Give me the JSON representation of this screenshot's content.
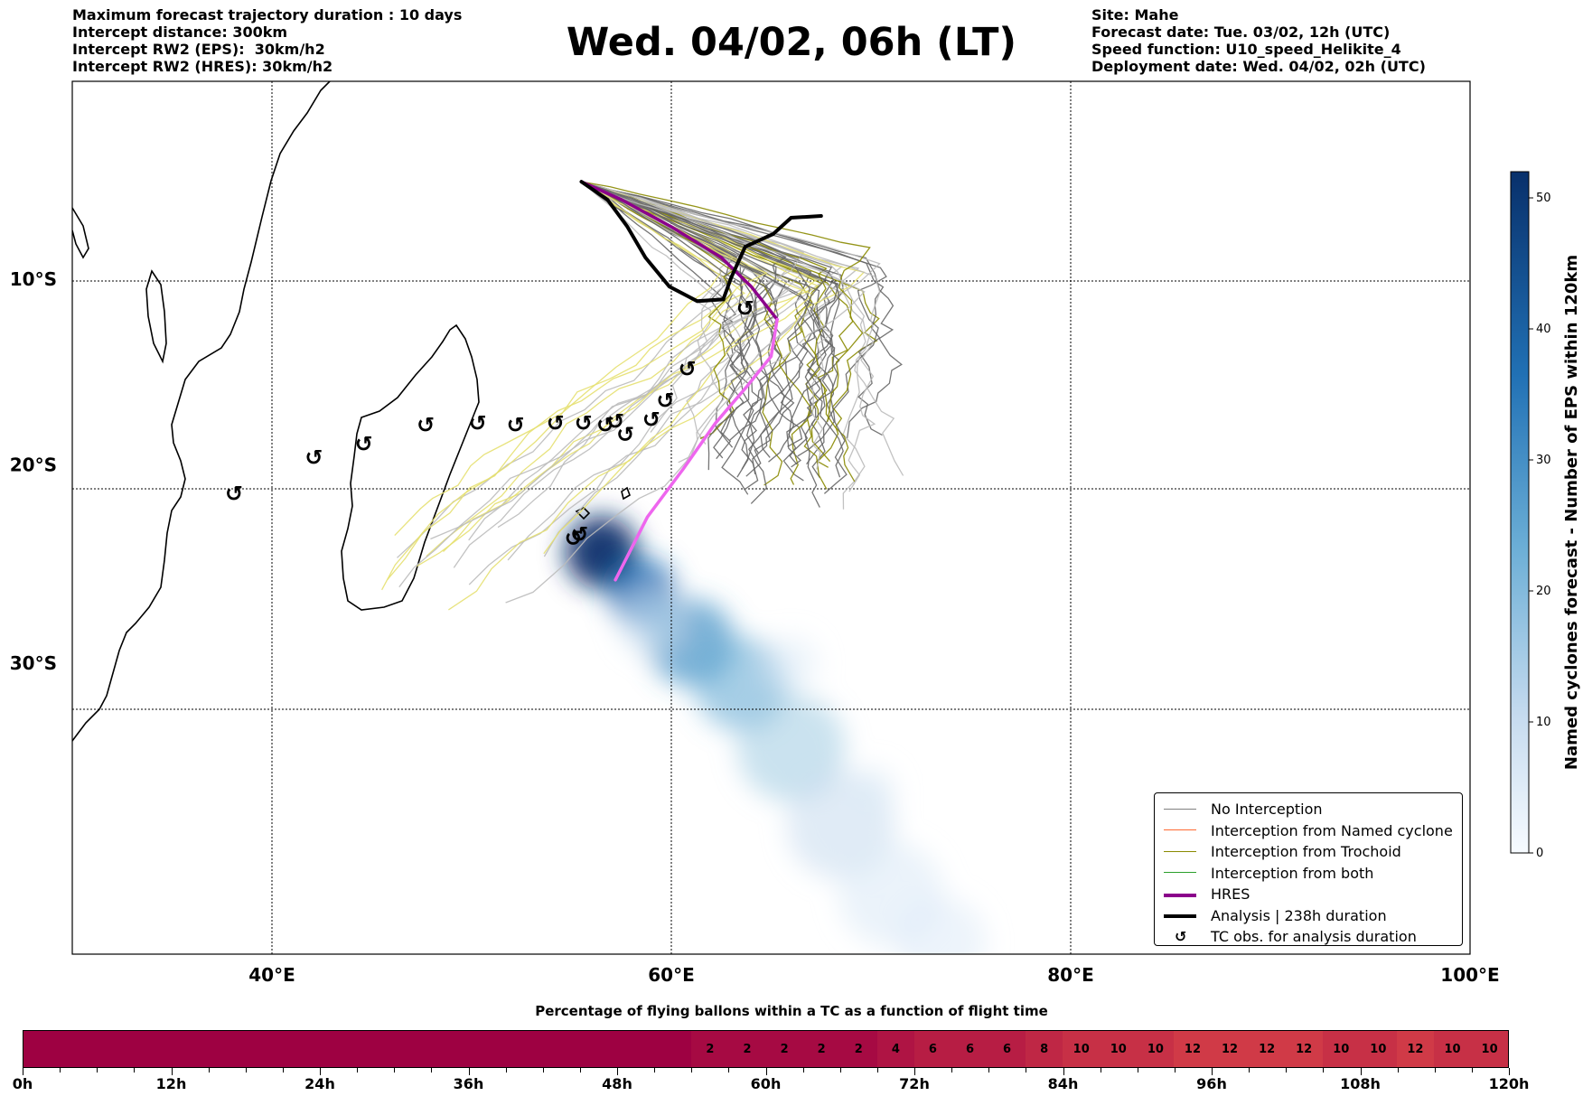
{
  "header": {
    "left": [
      "Maximum forecast trajectory duration : 10 days",
      "Intercept distance: 300km",
      "Intercept RW2 (EPS):  30km/h2",
      "Intercept RW2 (HRES): 30km/h2"
    ],
    "right": [
      "Site: Mahe",
      "Forecast date: Tue. 03/02, 12h (UTC)",
      "Speed function: U10_speed_Helikite_4",
      "Deployment date: Wed. 04/02, 02h (UTC)"
    ],
    "title": "Wed. 04/02, 06h (LT)"
  },
  "map": {
    "lon_range": [
      30,
      100
    ],
    "lat_range": [
      -43,
      1
    ],
    "lon_ticks": [
      {
        "value": 40,
        "label": "40°E"
      },
      {
        "value": 60,
        "label": "60°E"
      },
      {
        "value": 80,
        "label": "80°E"
      },
      {
        "value": 100,
        "label": "100°E"
      }
    ],
    "lat_ticks": [
      {
        "value": -10,
        "label": "10°S"
      },
      {
        "value": -20,
        "label": "20°S"
      },
      {
        "value": -30,
        "label": "30°S"
      }
    ],
    "site": {
      "name": "Mahe",
      "lon": 55.5,
      "lat": -4.6
    },
    "hres_track": [
      [
        55.5,
        -4.6
      ],
      [
        57.5,
        -5.6
      ],
      [
        60,
        -7.1
      ],
      [
        62.5,
        -8.8
      ],
      [
        64,
        -10.4
      ],
      [
        65.3,
        -12.2
      ],
      [
        65,
        -14.2
      ],
      [
        63.8,
        -15.8
      ],
      [
        62.2,
        -17.8
      ],
      [
        60.6,
        -20.2
      ],
      [
        58.8,
        -22.7
      ],
      [
        57.2,
        -25.9
      ]
    ],
    "analysis_track": [
      [
        55.5,
        -4.6
      ],
      [
        56.8,
        -5.6
      ],
      [
        57.8,
        -7.1
      ],
      [
        58.7,
        -8.8
      ],
      [
        59.9,
        -10.4
      ],
      [
        61.3,
        -11.2
      ],
      [
        62.6,
        -11.1
      ],
      [
        63,
        -9.9
      ],
      [
        63.7,
        -8.2
      ],
      [
        65.1,
        -7.5
      ],
      [
        66,
        -6.6
      ],
      [
        67.5,
        -6.5
      ]
    ],
    "tc_obs": [
      [
        38.1,
        -21.5
      ],
      [
        42.1,
        -19.6
      ],
      [
        44.6,
        -18.9
      ],
      [
        47.7,
        -17.9
      ],
      [
        50.3,
        -17.8
      ],
      [
        52.2,
        -17.9
      ],
      [
        54.2,
        -17.8
      ],
      [
        55.6,
        -17.8
      ],
      [
        56.7,
        -17.9
      ],
      [
        57.2,
        -17.7
      ],
      [
        57.7,
        -18.4
      ],
      [
        59,
        -17.6
      ],
      [
        59.7,
        -16.6
      ],
      [
        60.8,
        -14.9
      ],
      [
        63.7,
        -11.6
      ],
      [
        55.1,
        -23.8
      ],
      [
        55.4,
        -23.6
      ]
    ],
    "density_scale_max": 52,
    "colorbar": {
      "label": "Named cyclones forecast - Number of EPS within 120km",
      "ticks": [
        0,
        10,
        20,
        30,
        40,
        50
      ],
      "color_low": "#f7fbff",
      "color_high": "#08306b"
    }
  },
  "legend": [
    {
      "label": "No Interception",
      "color": "#808080",
      "type": "thin"
    },
    {
      "label": "Interception from Named cyclone",
      "color": "#ff6a33",
      "type": "thin"
    },
    {
      "label": "Interception from Trochoid",
      "color": "#8a8a00",
      "type": "thin"
    },
    {
      "label": "Interception from both",
      "color": "#2ca02c",
      "type": "thin"
    },
    {
      "label": "HRES",
      "color": "#8b008b",
      "type": "thick"
    },
    {
      "label": "Analysis | 238h duration",
      "color": "#000000",
      "type": "thick"
    },
    {
      "label": "TC obs. for analysis duration",
      "color": "#000000",
      "type": "marker",
      "glyph": "↺"
    }
  ],
  "percentage_bar": {
    "title": "Percentage of flying ballons within a TC as a function of flight time",
    "values": [
      0,
      0,
      0,
      0,
      0,
      0,
      0,
      0,
      0,
      0,
      0,
      0,
      0,
      0,
      0,
      0,
      0,
      0,
      2,
      2,
      2,
      2,
      2,
      4,
      6,
      6,
      6,
      8,
      10,
      10,
      10,
      12,
      12,
      12,
      12,
      10,
      10,
      12,
      10,
      10
    ],
    "ticks": [
      "0h",
      "12h",
      "24h",
      "36h",
      "48h",
      "60h",
      "72h",
      "84h",
      "96h",
      "108h",
      "120h"
    ]
  }
}
